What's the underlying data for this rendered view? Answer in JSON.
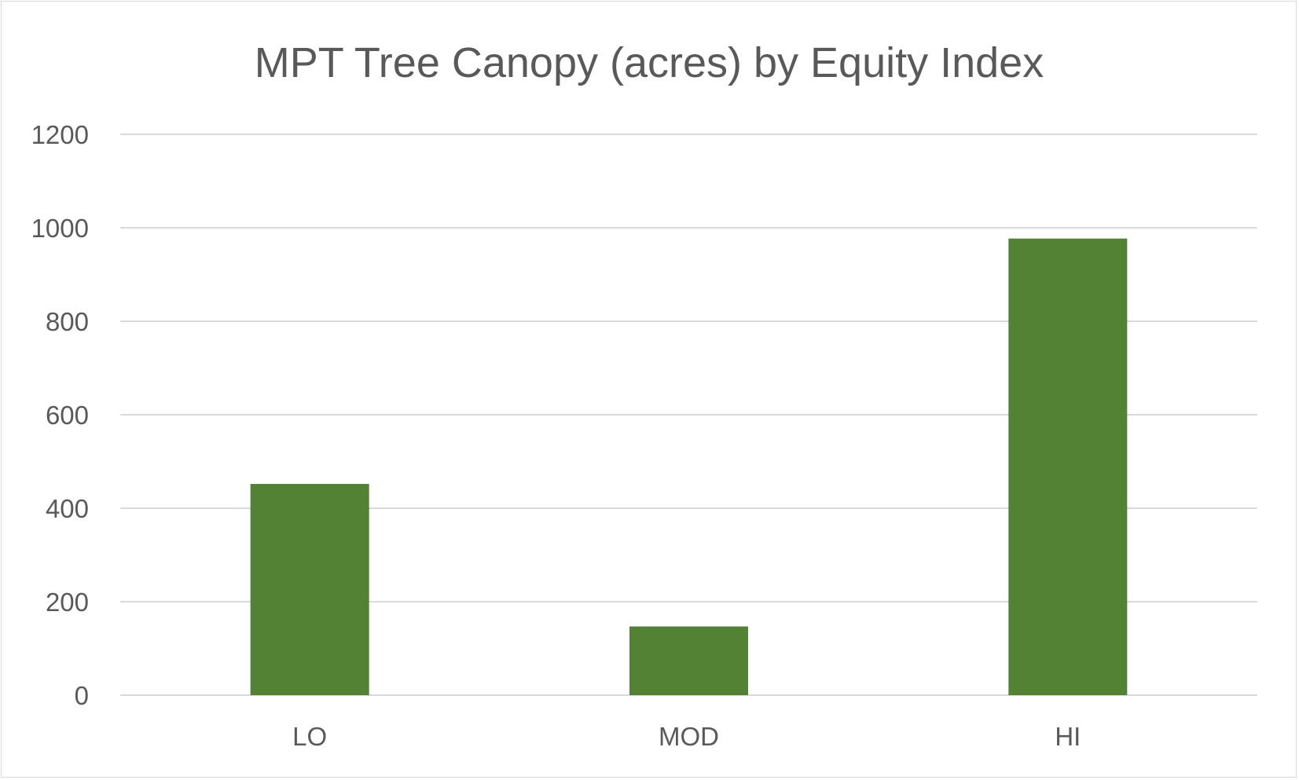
{
  "chart_data": {
    "type": "bar",
    "title": "MPT Tree Canopy (acres) by Equity Index",
    "xlabel": "",
    "ylabel": "",
    "categories": [
      "LO",
      "MOD",
      "HI"
    ],
    "values": [
      452,
      147,
      977
    ],
    "ylim": [
      0,
      1200
    ],
    "yticks": [
      0,
      200,
      400,
      600,
      800,
      1000,
      1200
    ],
    "grid": true,
    "legend": "none",
    "bar_color": "#548235"
  }
}
